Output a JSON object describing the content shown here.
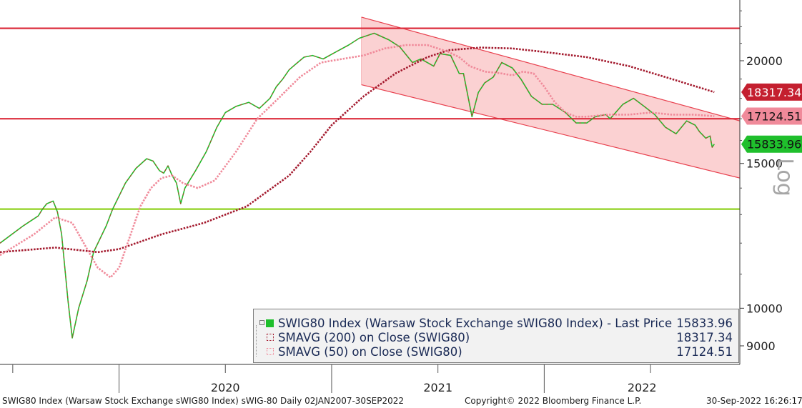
{
  "chart_data": {
    "type": "line",
    "yscale": "log",
    "ylim": [
      8600,
      23500
    ],
    "yticks": [
      9000,
      10000,
      15000,
      20000
    ],
    "y_axis_label": "Log",
    "x_ticks": [
      "2020",
      "2021",
      "2022"
    ],
    "series": [
      {
        "name": "SWIG80 Index (Warsaw Stock Exchange sWIG80 Index) - Last Price",
        "color": "#1fbf2c",
        "x": [
          2019.44,
          2019.55,
          2019.62,
          2019.64,
          2019.66,
          2019.69,
          2019.71,
          2019.73,
          2019.76,
          2019.78,
          2019.81,
          2019.85,
          2019.88,
          2019.94,
          2019.97,
          2020.03,
          2020.08,
          2020.13,
          2020.16,
          2020.19,
          2020.21,
          2020.23,
          2020.25,
          2020.27,
          2020.29,
          2020.31,
          2020.36,
          2020.41,
          2020.46,
          2020.5,
          2020.55,
          2020.61,
          2020.66,
          2020.71,
          2020.74,
          2020.77,
          2020.8,
          2020.83,
          2020.87,
          2020.91,
          2020.96,
          2021.02,
          2021.08,
          2021.13,
          2021.2,
          2021.27,
          2021.32,
          2021.38,
          2021.42,
          2021.48,
          2021.51,
          2021.56,
          2021.6,
          2021.62,
          2021.66,
          2021.69,
          2021.72,
          2021.76,
          2021.8,
          2021.85,
          2021.89,
          2021.94,
          2021.99,
          2022.04,
          2022.1,
          2022.15,
          2022.2,
          2022.24,
          2022.29,
          2022.31,
          2022.37,
          2022.42,
          2022.47,
          2022.52,
          2022.57,
          2022.62,
          2022.67,
          2022.71,
          2022.73,
          2022.76,
          2022.78,
          2022.79,
          2022.8
        ],
        "values": [
          12000,
          12600,
          12950,
          13200,
          13400,
          13500,
          13100,
          12300,
          10200,
          9200,
          10000,
          10800,
          11700,
          12600,
          13200,
          14200,
          14800,
          15200,
          15100,
          14700,
          14600,
          14900,
          14500,
          14200,
          13400,
          14000,
          14700,
          15500,
          16600,
          17300,
          17600,
          17800,
          17500,
          18000,
          18600,
          19000,
          19500,
          19800,
          20200,
          20300,
          20100,
          20500,
          20900,
          21300,
          21600,
          21200,
          20800,
          19900,
          20100,
          19700,
          20400,
          20300,
          19300,
          19300,
          17100,
          18300,
          18800,
          19100,
          19900,
          19600,
          19000,
          18100,
          17700,
          17700,
          17300,
          16800,
          16800,
          17100,
          17200,
          17000,
          17700,
          18000,
          17600,
          17200,
          16600,
          16300,
          16900,
          16700,
          16400,
          16100,
          16200,
          15700,
          15834
        ]
      },
      {
        "name": "SMAVG (200) on Close (SWIG80)",
        "color": "#a3192d",
        "x": [
          2019.44,
          2019.7,
          2019.9,
          2020.0,
          2020.2,
          2020.4,
          2020.6,
          2020.8,
          2020.9,
          2021.0,
          2021.15,
          2021.3,
          2021.45,
          2021.55,
          2021.7,
          2021.85,
          2022.0,
          2022.2,
          2022.4,
          2022.6,
          2022.8
        ],
        "values": [
          11700,
          11850,
          11700,
          11800,
          12300,
          12700,
          13300,
          14500,
          15500,
          16700,
          18100,
          19300,
          20200,
          20600,
          20750,
          20700,
          20500,
          20200,
          19700,
          19000,
          18317
        ]
      },
      {
        "name": "SMAVG (50) on Close (SWIG80)",
        "color": "#f08a9a",
        "x": [
          2019.44,
          2019.6,
          2019.7,
          2019.78,
          2019.85,
          2019.9,
          2019.96,
          2020.0,
          2020.05,
          2020.1,
          2020.15,
          2020.2,
          2020.25,
          2020.3,
          2020.37,
          2020.45,
          2020.55,
          2020.65,
          2020.75,
          2020.85,
          2020.95,
          2021.05,
          2021.15,
          2021.25,
          2021.35,
          2021.45,
          2021.55,
          2021.6,
          2021.65,
          2021.72,
          2021.8,
          2021.85,
          2021.9,
          2021.95,
          2022.0,
          2022.05,
          2022.1,
          2022.15,
          2022.2,
          2022.3,
          2022.4,
          2022.5,
          2022.6,
          2022.7,
          2022.8
        ],
        "values": [
          11600,
          12300,
          12900,
          12700,
          11800,
          11200,
          10900,
          11200,
          12200,
          13300,
          14000,
          14400,
          14500,
          14200,
          14000,
          14300,
          15500,
          17000,
          18000,
          19100,
          19900,
          20100,
          20300,
          20700,
          20900,
          20900,
          20500,
          20200,
          19700,
          19400,
          19300,
          19200,
          19400,
          19300,
          18600,
          17800,
          17300,
          17100,
          17100,
          17200,
          17200,
          17300,
          17200,
          17200,
          17124
        ]
      }
    ],
    "horizontal_lines": [
      {
        "value": 21900,
        "color": "#dc2d3c"
      },
      {
        "value": 17000,
        "color": "#dc2d3c"
      },
      {
        "value": 13200,
        "color": "#8fd11f"
      }
    ],
    "channel": {
      "color": "#fbd1d2",
      "edge": "#e8404e",
      "x": [
        2021.14,
        2022.92
      ],
      "upper": [
        22600,
        16900
      ],
      "lower": [
        18700,
        14400
      ]
    },
    "price_tags": [
      {
        "value": 18317.34,
        "text": "18317.34",
        "color": "#c41f2f"
      },
      {
        "value": 17124.51,
        "text": "17124.51",
        "color": "#f08a9a"
      },
      {
        "value": 15833.96,
        "text": "15833.96",
        "color": "#1fbf2c"
      }
    ]
  },
  "legend": {
    "main_label": "SWIG80 Index (Warsaw Stock Exchange sWIG80 Index) - Last Price",
    "main_value": "15833.96",
    "sma200_label": "SMAVG (200)  on Close (SWIG80)",
    "sma200_value": "18317.34",
    "sma50_label": "SMAVG (50)  on Close (SWIG80)",
    "sma50_value": "17124.51"
  },
  "footer": {
    "left": "SWIG80 Index (Warsaw Stock Exchange sWIG80 Index) sWIG-80  Daily 02JAN2007-30SEP2022",
    "center": "Copyright© 2022 Bloomberg Finance L.P.",
    "right": "30-Sep-2022 16:26:17"
  }
}
